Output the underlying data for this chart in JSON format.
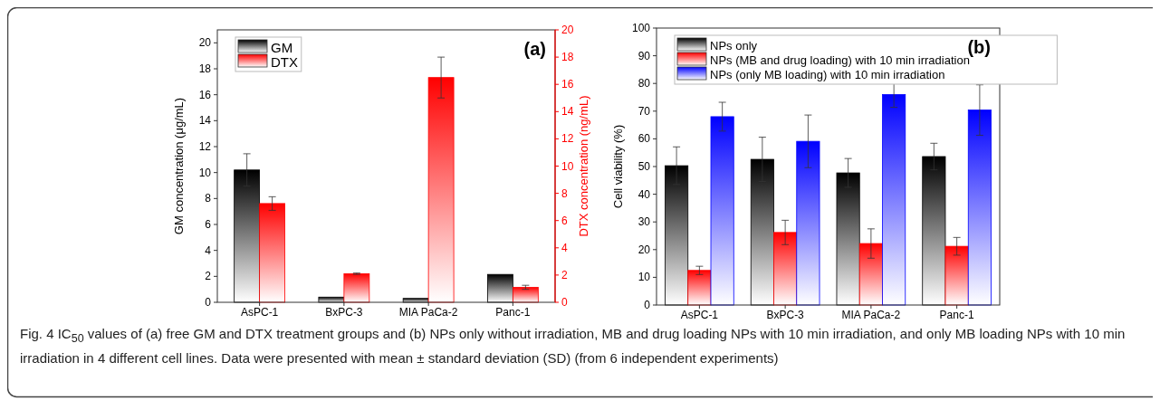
{
  "chart_data": [
    {
      "type": "bar",
      "categories": [
        "AsPC-1",
        "BxPC-3",
        "MIA PaCa-2",
        "Panc-1"
      ],
      "ylabel": "GM concentration (μg/mL)",
      "y2label": "DTX concentration (ng/mL)",
      "ylim": [
        0,
        21
      ],
      "yticks": [
        0,
        2,
        4,
        6,
        8,
        10,
        12,
        14,
        16,
        18,
        20
      ],
      "y2lim": [
        0,
        20
      ],
      "y2ticks": [
        0,
        2,
        4,
        6,
        8,
        10,
        12,
        14,
        16,
        18,
        20
      ],
      "legend": "top left",
      "annotations": [
        "(a)"
      ],
      "series": [
        {
          "name": "GM",
          "color": "#000000",
          "values": [
            10.2,
            0.4,
            0.3,
            2.15
          ],
          "errors": [
            1.25,
            null,
            null,
            null
          ]
        },
        {
          "name": "DTX",
          "color": "#ff0000",
          "axis": "y2",
          "values": [
            7.25,
            2.1,
            16.5,
            1.1
          ],
          "errors": [
            0.5,
            0.05,
            1.5,
            0.15
          ]
        }
      ]
    },
    {
      "type": "bar",
      "categories": [
        "AsPC-1",
        "BxPC-3",
        "MIA PaCa-2",
        "Panc-1"
      ],
      "ylabel": "Cell viability (%)",
      "ylim": [
        0,
        100
      ],
      "yticks": [
        0,
        10,
        20,
        30,
        40,
        50,
        60,
        70,
        80,
        90,
        100
      ],
      "legend": "top left",
      "annotations": [
        "(b)",
        "Fig. 4 IC$_{50}$ values of (a) free GM and DTX treatment groups and (b) NPs only without irradiation, MB and drug loading NPs with 10 min irradiation, and only MB loading NPs with 10 min irradiation in 4 different cell lines. Data were presented with mean ± standard deviation (SD) (from 6 independent experiments)"
      ],
      "series": [
        {
          "name": "NPs only",
          "color": "#000000",
          "values": [
            50.3,
            52.6,
            47.7,
            53.6
          ],
          "errors": [
            6.8,
            8,
            5.2,
            4.8
          ]
        },
        {
          "name": "NPs (MB and drug loading) with 10 min irradiation",
          "color": "#ff0000",
          "values": [
            12.5,
            26.2,
            22.2,
            21.2
          ],
          "errors": [
            1.5,
            4.4,
            5.3,
            3.2
          ]
        },
        {
          "name": "NPs (only MB loading) with 10 min irradiation",
          "color": "#0000ff",
          "values": [
            68,
            59.1,
            76,
            70.4
          ],
          "errors": [
            5.2,
            9.5,
            4.6,
            9.1
          ]
        }
      ]
    }
  ]
}
